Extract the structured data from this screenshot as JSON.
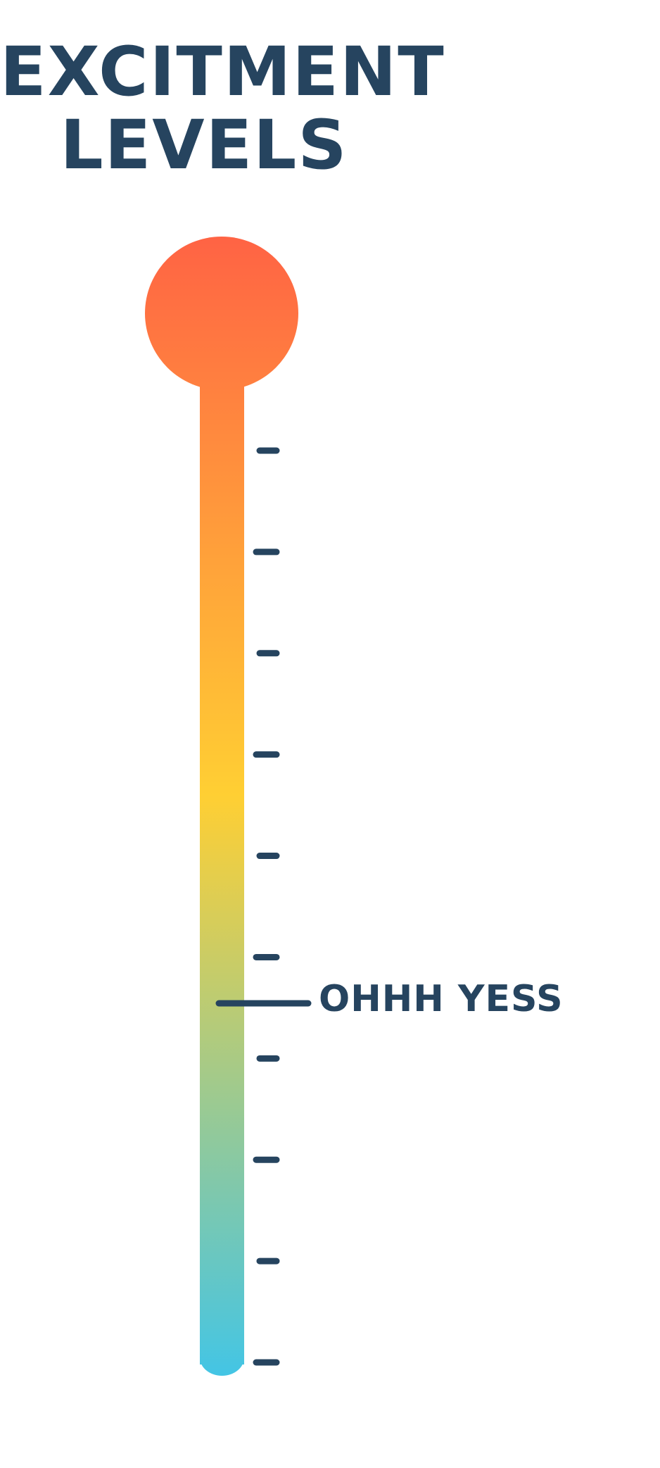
{
  "title": {
    "line1": "EXCITMENT",
    "line2": "LEVELS"
  },
  "thermometer": {
    "tick_count": 10,
    "marker_level": 0.4,
    "marker_label": "OHHH YESS",
    "colors": {
      "top": "#ff6344",
      "middle": "#ffcf33",
      "bottom": "#43c5e5",
      "ink": "#26445f"
    }
  }
}
